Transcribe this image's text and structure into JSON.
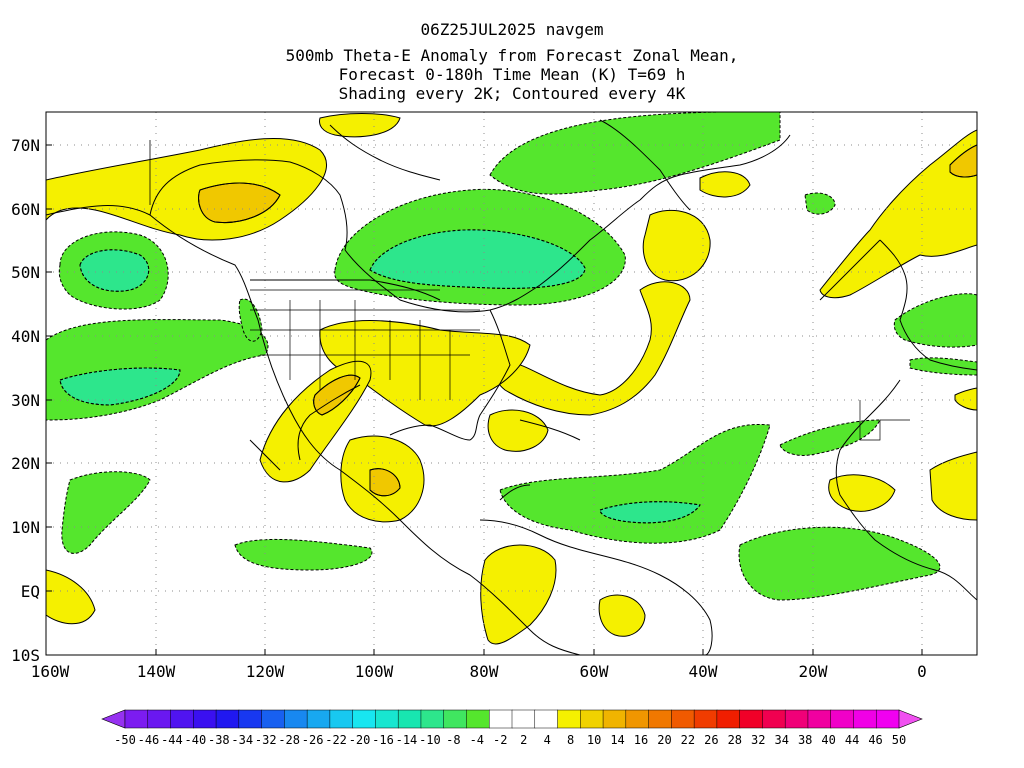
{
  "title": {
    "line1": "06Z25JUL2025 navgem",
    "line2": "500mb Theta-E Anomaly from Forecast Zonal Mean,",
    "line3": "Forecast 0-180h Time Mean (K) T=69 h",
    "line4": "Shading every 2K; Contoured every 4K"
  },
  "map": {
    "lon_range": [
      -160,
      10
    ],
    "lat_range": [
      -10,
      75
    ],
    "lon_ticks": [
      "160W",
      "140W",
      "120W",
      "100W",
      "80W",
      "60W",
      "40W",
      "20W",
      "0"
    ],
    "lat_ticks": [
      "70N",
      "60N",
      "50N",
      "40N",
      "30N",
      "20N",
      "10N",
      "EQ",
      "10S"
    ],
    "colors": {
      "positive_low": "#f5f000",
      "positive_mid": "#f0c800",
      "negative_low": "#55e62d",
      "negative_mid": "#2de68c",
      "negative_high": "#18d2b4",
      "coast": "#000000",
      "grid": "#8c8c8c"
    }
  },
  "colorbar": {
    "labels": [
      "-50",
      "-46",
      "-44",
      "-40",
      "-38",
      "-34",
      "-32",
      "-28",
      "-26",
      "-22",
      "-20",
      "-16",
      "-14",
      "-10",
      "-8",
      "-4",
      "-2",
      "2",
      "4",
      "8",
      "10",
      "14",
      "16",
      "20",
      "22",
      "26",
      "28",
      "32",
      "34",
      "38",
      "40",
      "44",
      "46",
      "50"
    ],
    "colors": [
      "#7c1cf0",
      "#6a18f0",
      "#5014f0",
      "#3a10f0",
      "#2018f0",
      "#1838f0",
      "#1860f0",
      "#1888f0",
      "#18a8f0",
      "#18c8f0",
      "#18e6f0",
      "#18e6d0",
      "#18e6b0",
      "#2de68c",
      "#40e660",
      "#55e62d",
      "#ffffff",
      "#ffffff",
      "#ffffff",
      "#f5f000",
      "#f0d200",
      "#f0b400",
      "#f09600",
      "#f07800",
      "#f05a00",
      "#f03c00",
      "#f01e00",
      "#f00028",
      "#f00050",
      "#f00078",
      "#f000a0",
      "#f000c8",
      "#f000e6",
      "#f000f0"
    ],
    "left_end_color": "#9632f0",
    "right_end_color": "#f050f0"
  }
}
